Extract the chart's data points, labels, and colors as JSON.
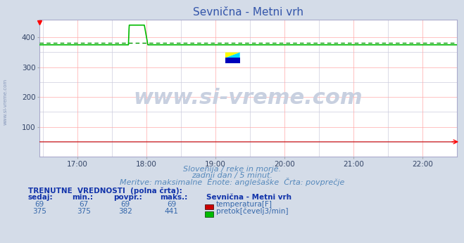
{
  "title": "Sevnična - Metni vrh",
  "title_color": "#3355aa",
  "bg_color": "#d4dce8",
  "plot_bg_color": "#ffffff",
  "grid_color_red": "#ffaaaa",
  "grid_color_gray": "#ccccdd",
  "xmin": 16.45,
  "xmax": 22.5,
  "ymin": 0,
  "ymax": 460,
  "yticks": [
    100,
    200,
    300,
    400
  ],
  "xtick_labels": [
    "17:00",
    "18:00",
    "19:00",
    "20:00",
    "21:00",
    "22:00"
  ],
  "xtick_positions": [
    17,
    18,
    19,
    20,
    21,
    22
  ],
  "temp_color": "#cc0000",
  "temp_const": 50,
  "flow_color": "#00bb00",
  "flow_avg_color": "#009900",
  "flow_avg": 382,
  "flow_base": 375,
  "flow_peak": 441,
  "flow_spike_start": 17.75,
  "flow_spike_end": 17.97,
  "flow_drop_start": 17.97,
  "flow_drop_end": 18.02,
  "subtitle1": "Slovenija / reke in morje.",
  "subtitle2": "zadnji dan / 5 minut.",
  "subtitle3": "Meritve: maksimalne  Enote: anglešaške  Črta: povprečje",
  "subtitle_color": "#5588bb",
  "table_header_color": "#1133aa",
  "table_value_color": "#3366aa",
  "watermark": "www.si-vreme.com",
  "watermark_color": "#c8d0e0",
  "side_watermark_color": "#8899bb",
  "station_label": "Sevnična - Metni vrh",
  "temp_label": "temperatura[F]",
  "flow_label": "pretok[čevelj3/min]",
  "temp_sedaj": 69,
  "temp_min": 67,
  "temp_avg_val": 69,
  "temp_max": 69,
  "flow_sedaj": 375,
  "flow_min": 375,
  "flow_avg_val": 382,
  "flow_max": 441
}
